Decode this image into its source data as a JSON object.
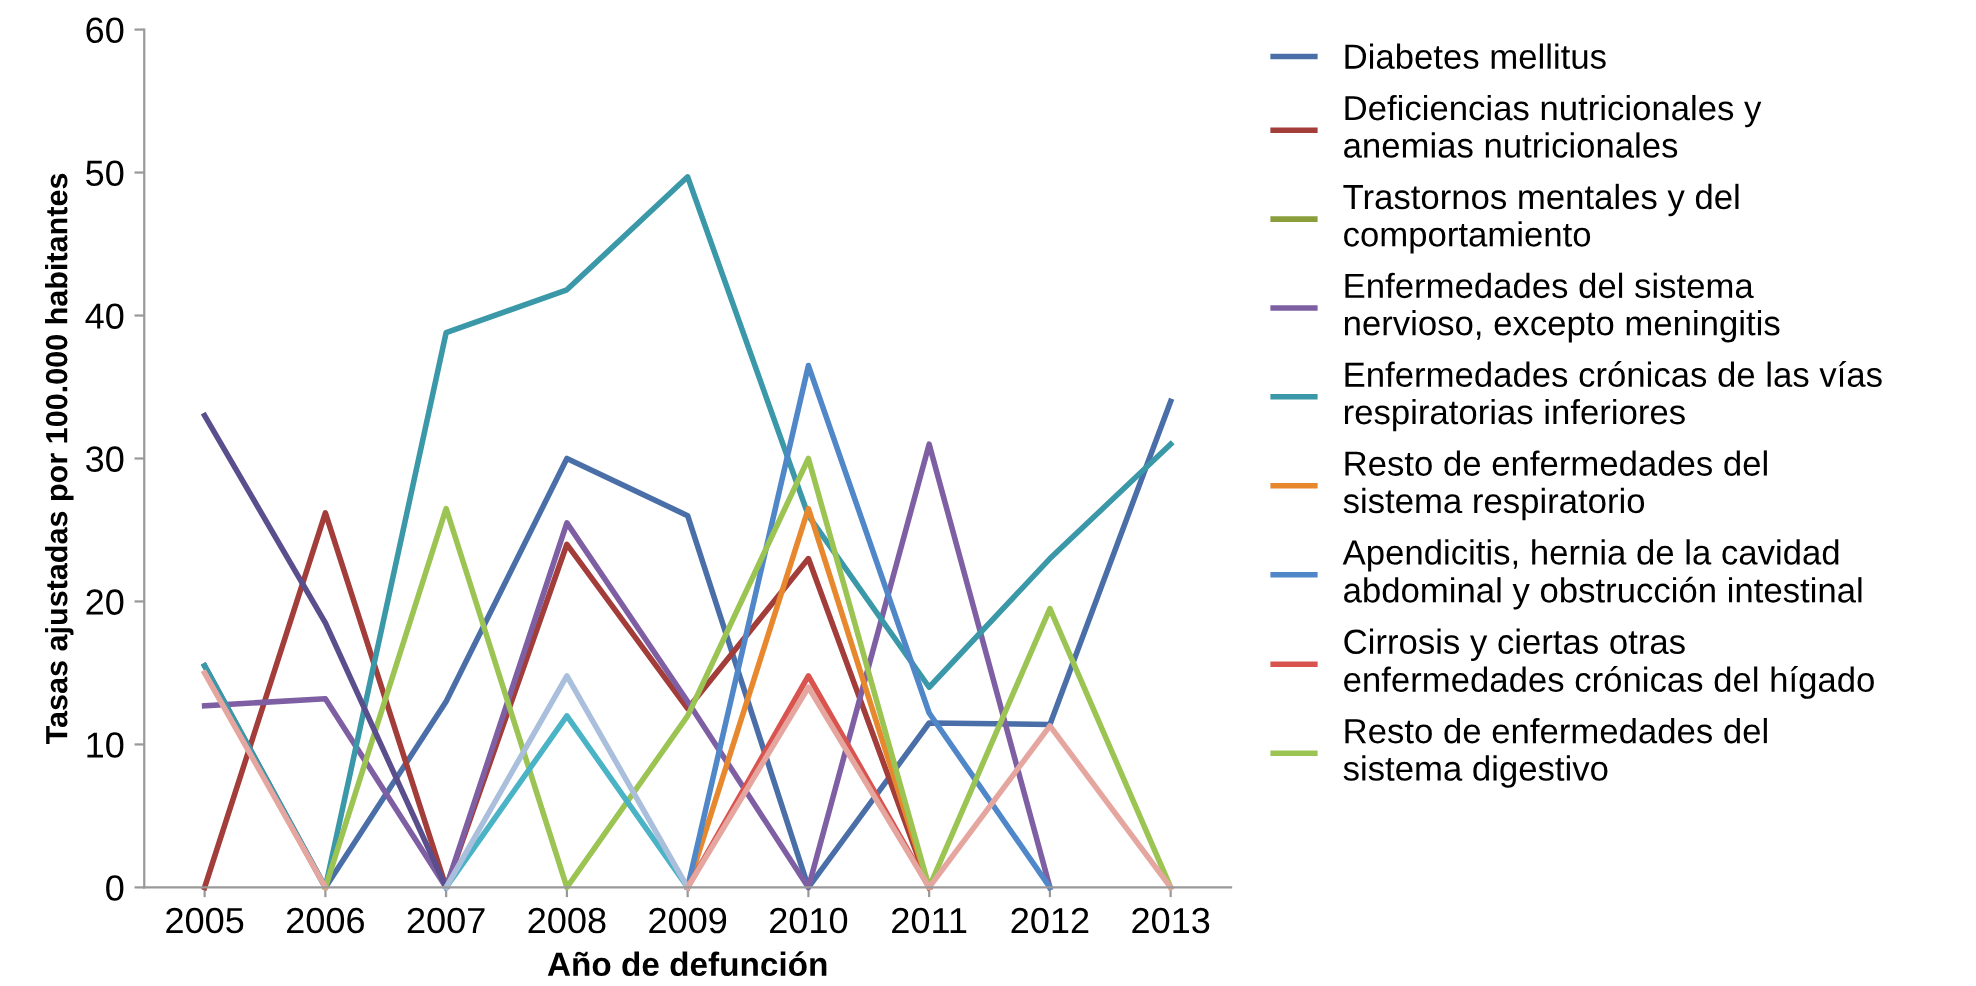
{
  "chart_data": {
    "type": "line",
    "xlabel": "Año de defunción",
    "ylabel": "Tasas ajustadas por 100.000 habitantes",
    "categories": [
      "2005",
      "2006",
      "2007",
      "2008",
      "2009",
      "2010",
      "2011",
      "2012",
      "2013"
    ],
    "ylim": [
      0,
      60
    ],
    "yticks": [
      0,
      10,
      20,
      30,
      40,
      50,
      60
    ],
    "grid": false,
    "legend": "right",
    "marker": "none",
    "line_style": "solid",
    "series": [
      {
        "name": "Diabetes mellitus",
        "color": "#4a6fa8",
        "values": [
          15.5,
          0,
          13,
          30,
          26,
          0,
          11.5,
          11.4,
          34
        ]
      },
      {
        "name": "Deficiencias nutricionales y\nanemias nutricionales",
        "color": "#a33d3a",
        "values": [
          0,
          26.2,
          0,
          24,
          12.5,
          23,
          0,
          null,
          null
        ]
      },
      {
        "name": "Trastornos mentales y del\ncomportamiento",
        "color": "#8a9f3c",
        "values": [
          null,
          null,
          null,
          null,
          null,
          null,
          null,
          null,
          null
        ]
      },
      {
        "name": "Enfermedades del sistema\nnervioso, excepto meningitis",
        "color": "#7f5fa3",
        "values": [
          12.7,
          13.2,
          0,
          25.5,
          13,
          0,
          31,
          0,
          null
        ]
      },
      {
        "name": "Enfermedades crónicas de las vías\nrespiratorias inferiores",
        "color": "#3a98a8",
        "values": [
          15.5,
          0,
          38.8,
          41.8,
          49.7,
          26,
          14,
          23,
          31
        ]
      },
      {
        "name": "Resto de enfermedades del\nsistema respiratorio",
        "color": "#e8882e",
        "values": [
          null,
          null,
          null,
          null,
          0,
          26.5,
          0,
          null,
          null
        ]
      },
      {
        "name": "Apendicitis, hernia de la cavidad\nabdominal y obstrucción intestinal",
        "color": "#4f87c8",
        "values": [
          null,
          null,
          null,
          null,
          0,
          36.5,
          12.2,
          0,
          null
        ]
      },
      {
        "name": "Cirrosis y ciertas otras\nenfermedades crónicas del hígado",
        "color": "#d9534f",
        "values": [
          null,
          null,
          null,
          null,
          0,
          14.8,
          0,
          null,
          null
        ]
      },
      {
        "name": "Resto de enfermedades del\nsistema digestivo",
        "color": "#9bc453",
        "values": [
          null,
          0,
          26.5,
          0,
          12,
          30,
          0,
          19.5,
          0
        ]
      },
      {
        "color": "#5a4e8c",
        "values": [
          33,
          18.5,
          0,
          null,
          null,
          null,
          null,
          null,
          null
        ]
      },
      {
        "color": "#4bb3c6",
        "values": [
          null,
          null,
          0,
          12,
          0,
          null,
          null,
          null,
          null
        ]
      },
      {
        "color": "#a9bfdc",
        "values": [
          null,
          null,
          0,
          14.8,
          0,
          null,
          null,
          null,
          null
        ]
      },
      {
        "color": "#e6a6a0",
        "values": [
          15,
          0,
          null,
          null,
          0,
          14,
          0,
          11.3,
          0
        ]
      }
    ]
  }
}
